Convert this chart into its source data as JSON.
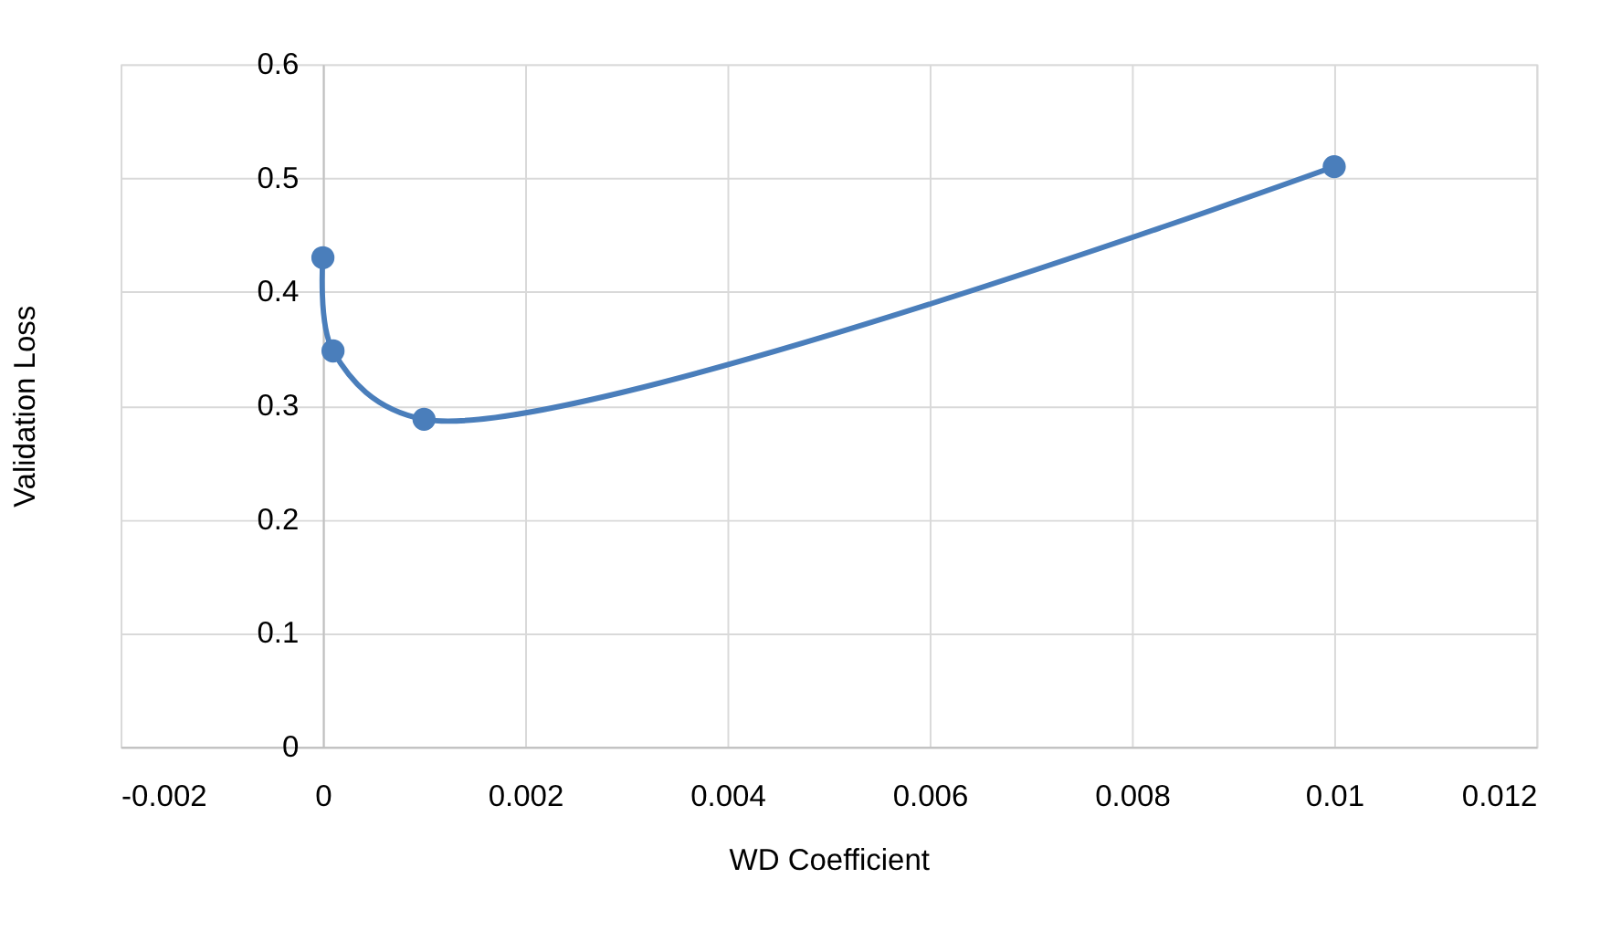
{
  "chart_data": {
    "type": "line",
    "xlabel": "WD Coefficient",
    "ylabel": "Validation Loss",
    "x": [
      0,
      0.0001,
      0.001,
      0.01
    ],
    "series": [
      {
        "color": "#4a7ebb",
        "values": [
          0.43,
          0.348,
          0.288,
          0.51
        ]
      }
    ],
    "marker": "circle",
    "line_style": "solid",
    "xlim": [
      -0.002,
      0.012
    ],
    "xticks": [
      -0.002,
      0,
      0.002,
      0.004,
      0.006,
      0.008,
      0.01,
      0.012
    ],
    "ylim": [
      0,
      0.6
    ],
    "yticks": [
      0,
      0.1,
      0.2,
      0.3,
      0.4,
      0.5,
      0.6
    ],
    "grid": true
  }
}
